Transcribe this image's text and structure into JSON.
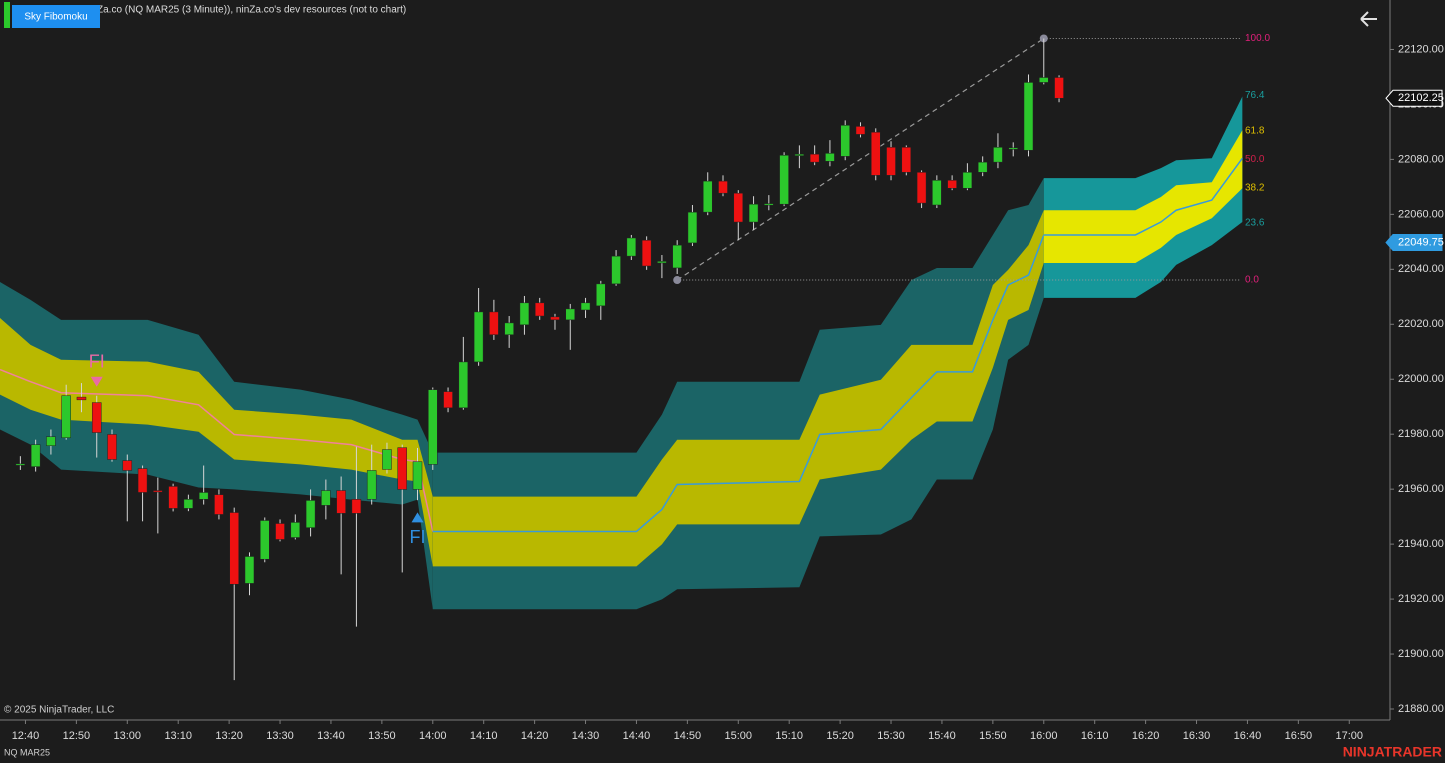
{
  "chart_data": {
    "type": "candlestick",
    "indicator_button": "Sky Fibomoku",
    "chart_label": "Za.co (NQ MAR25 (3 Minute)), ninZa.co's dev resources (not to chart)",
    "copyright": "© 2025 NinjaTrader, LLC",
    "instrument": "NQ MAR25",
    "brand": "NINJATRADER",
    "xlim": [
      "12:35",
      "17:08"
    ],
    "ylim": [
      21876,
      22138
    ],
    "grid": false,
    "xticks": [
      "12:40",
      "12:50",
      "13:00",
      "13:10",
      "13:20",
      "13:30",
      "13:40",
      "13:50",
      "14:00",
      "14:10",
      "14:20",
      "14:30",
      "14:40",
      "14:50",
      "15:00",
      "15:10",
      "15:20",
      "15:30",
      "15:40",
      "15:50",
      "16:00",
      "16:10",
      "16:20",
      "16:30",
      "16:40",
      "16:50",
      "17:00"
    ],
    "yticks": [
      {
        "value": 21880,
        "label": "21880.00"
      },
      {
        "value": 21900,
        "label": "21900.00"
      },
      {
        "value": 21920,
        "label": "21920.00"
      },
      {
        "value": 21940,
        "label": "21940.00"
      },
      {
        "value": 21960,
        "label": "21960.00"
      },
      {
        "value": 21980,
        "label": "21980.00"
      },
      {
        "value": 22000,
        "label": "22000.00"
      },
      {
        "value": 22020,
        "label": "22020.00"
      },
      {
        "value": 22040,
        "label": "22040.00"
      },
      {
        "value": 22060,
        "label": "22060.00"
      },
      {
        "value": 22080,
        "label": "22080.00"
      },
      {
        "value": 22100,
        "label": "22100.00"
      },
      {
        "value": 22120,
        "label": "22120.00"
      }
    ],
    "up_color": "#2cc82c",
    "down_color": "#ee1111",
    "wick_color": "#d6d6d6",
    "x": [
      "12:39",
      "12:42",
      "12:45",
      "12:48",
      "12:51",
      "12:54",
      "12:57",
      "13:00",
      "13:03",
      "13:06",
      "13:09",
      "13:12",
      "13:15",
      "13:18",
      "13:21",
      "13:24",
      "13:27",
      "13:30",
      "13:33",
      "13:36",
      "13:39",
      "13:42",
      "13:45",
      "13:48",
      "13:51",
      "13:54",
      "13:57",
      "14:00",
      "14:03",
      "14:06",
      "14:09",
      "14:12",
      "14:15",
      "14:18",
      "14:21",
      "14:24",
      "14:27",
      "14:30",
      "14:33",
      "14:36",
      "14:39",
      "14:42",
      "14:45",
      "14:48",
      "14:51",
      "14:54",
      "14:57",
      "15:00",
      "15:03",
      "15:06",
      "15:09",
      "15:12",
      "15:15",
      "15:18",
      "15:21",
      "15:24",
      "15:27",
      "15:30",
      "15:33",
      "15:36",
      "15:39",
      "15:42",
      "15:45",
      "15:48",
      "15:51",
      "15:54",
      "15:57",
      "16:00",
      "16:03"
    ],
    "open": [
      21968.8,
      21968.2,
      21975.8,
      21978.7,
      21993.5,
      21991.5,
      21979.9,
      21970.4,
      21967.5,
      21959.5,
      21961,
      21953,
      21956.3,
      21958,
      21951.5,
      21925.7,
      21934.5,
      21947.5,
      21942.4,
      21946,
      21954.1,
      21959.5,
      21956.3,
      21956.3,
      21967.2,
      21975.1,
      21959.9,
      21969,
      21995.5,
      21989.6,
      22006.3,
      22024.5,
      22016.2,
      22019.8,
      22027.8,
      22022.7,
      22021.6,
      22025.2,
      22026.7,
      22034.7,
      22044.8,
      22050.6,
      22042.3,
      22040.5,
      22049.6,
      22060.8,
      22072.1,
      22067.7,
      22057.2,
      22063.5,
      22063.7,
      22081.7,
      22081.9,
      22079.3,
      22081.1,
      22092,
      22089.9,
      22084.4,
      22084.4,
      22075.3,
      22063.4,
      22072.4,
      22069.5,
      22075.3,
      22079,
      22083.9,
      22083.3,
      22108,
      22109.8
    ],
    "high": [
      21972,
      21978,
      21981.7,
      21998,
      21998.6,
      21994,
      21981.7,
      21972.6,
      21968.6,
      21964.2,
      21962,
      21958,
      21968.6,
      21959.9,
      21953.3,
      21937,
      21949.7,
      21949,
      21950.8,
      21959.9,
      21963.5,
      21964.6,
      21975.5,
      21976.2,
      21976.9,
      21976.2,
      21975,
      21997,
      21997,
      22015.4,
      22033.2,
      22028.9,
      22023,
      22030.3,
      22029.6,
      22023.8,
      22027.4,
      22029.6,
      22035.8,
      22047,
      22052.5,
      22052,
      22045.2,
      22050.6,
      22063.4,
      22075.3,
      22074.2,
      22068.8,
      22066.6,
      22067,
      22082.6,
      22085.1,
      22085.1,
      22087,
      22094.2,
      22093.5,
      22091.3,
      22086.6,
      22085.1,
      22076,
      22074.2,
      22074.2,
      22078.6,
      22081.1,
      22089.5,
      22086.2,
      22110.9,
      22124,
      22110.6
    ],
    "low": [
      21967,
      21966.4,
      21972.6,
      21978,
      21988,
      21971.5,
      21970,
      21948.3,
      21948.3,
      21943.9,
      21951.9,
      21952,
      21954.4,
      21949,
      21890.5,
      21921.4,
      21933.4,
      21941,
      21941.7,
      21942.8,
      21949,
      21929,
      21910,
      21954.4,
      21965.7,
      21929.7,
      21956,
      21967,
      21988,
      21988.9,
      22004.9,
      22014.3,
      22011.4,
      22016.2,
      22021.6,
      22018,
      22010.7,
      22022.3,
      22021.6,
      22034,
      22043.4,
      22039.8,
      22036.8,
      22038.3,
      22048.5,
      22059.7,
      22066.6,
      22050.6,
      22054.3,
      22061.5,
      22063,
      22076.8,
      22077.9,
      22077.5,
      22079.7,
      22088,
      22072.4,
      22072.4,
      22074.2,
      22062.3,
      22062.3,
      22068.8,
      22068.8,
      22073.9,
      22076.8,
      22081.1,
      22081.1,
      22107.3,
      22100.8
    ],
    "close": [
      21969.2,
      21976.2,
      21979.1,
      21994,
      21992.5,
      21980.6,
      21970.8,
      21966.8,
      21958.8,
      21959.2,
      21953,
      21956.3,
      21958.8,
      21950.8,
      21925.4,
      21935.5,
      21948.6,
      21941.7,
      21947.9,
      21955.9,
      21959.5,
      21951.2,
      21951.2,
      21966.8,
      21974.4,
      21959.9,
      21970,
      21996.2,
      21989.6,
      22006.3,
      22024.5,
      22016.2,
      22020.5,
      22027.8,
      22023,
      22021.6,
      22025.6,
      22027.8,
      22034.7,
      22044.8,
      22051.4,
      22041.2,
      22042.9,
      22048.8,
      22060.8,
      22072.1,
      22067.7,
      22057.2,
      22063.7,
      22063.9,
      22081.5,
      22081.9,
      22079,
      22082.2,
      22092.4,
      22089.1,
      22074.2,
      22074.2,
      22075.3,
      22064.1,
      22072.4,
      22069.5,
      22075.3,
      22079,
      22084.4,
      22084.2,
      22108,
      22109.8,
      22102.25
    ],
    "bands": [
      {
        "outer_color": "#1b6466",
        "inner_color": "#b9b800",
        "mid_color": "#f0829a",
        "x": [
          "12:35",
          "12:41",
          "12:47",
          "13:04",
          "13:14",
          "13:21",
          "13:34",
          "13:44",
          "13:54",
          "13:57",
          "14:00"
        ],
        "outer_upper": [
          22035.4,
          22028.9,
          22021.6,
          22021.6,
          22016.2,
          21999.1,
          21996.2,
          21992.6,
          21987.1,
          21985.3,
          21973.3
        ],
        "inner_upper": [
          22022.3,
          22012.5,
          22007.1,
          22006.4,
          22002.7,
          21988.9,
          21987.1,
          21985.3,
          21978,
          21978,
          21957.3
        ],
        "mid": [
          22003.5,
          21999.1,
          21995.1,
          21994,
          21990.7,
          21979.9,
          21978,
          21976.2,
          21970.8,
          21970,
          21944.6
        ],
        "inner_lower": [
          21994.4,
          21988.9,
          21985.3,
          21983.5,
          21980.9,
          21970.8,
          21969,
          21967.1,
          21963.5,
          21962.8,
          21931.9
        ],
        "outer_lower": [
          21981.7,
          21976.2,
          21967.1,
          21965.3,
          21960.6,
          21959.9,
          21958.1,
          21956.2,
          21954.4,
          21956.2,
          21916.3
        ]
      },
      {
        "outer_color": "#1b6466",
        "inner_color": "#b9b800",
        "mid_color": "#3a9ad9",
        "x": [
          "14:00",
          "14:40",
          "14:45",
          "14:48",
          "15:12",
          "15:16",
          "15:28",
          "15:34",
          "15:39",
          "15:46",
          "15:50",
          "15:53",
          "15:57",
          "16:00"
        ],
        "outer_upper": [
          21973.3,
          21973.3,
          21987.1,
          21999.1,
          21999.1,
          22018,
          22019.8,
          22036.1,
          22040.5,
          22040.5,
          22052.5,
          22061.5,
          22063.4,
          22073.2
        ],
        "inner_upper": [
          21957.3,
          21957.3,
          21970.8,
          21978,
          21978,
          21994.4,
          21999.8,
          22012.5,
          22012.5,
          22012.5,
          22034.3,
          22039.8,
          22048.8,
          22061.5
        ],
        "mid": [
          21944.6,
          21944.6,
          21952.6,
          21961.7,
          21962.8,
          21979.9,
          21981.7,
          21993.3,
          22002.7,
          22002.7,
          22021.6,
          22034.3,
          22037.9,
          22052.5
        ],
        "inner_lower": [
          21931.9,
          21931.9,
          21939.9,
          21947.2,
          21947.2,
          21963.5,
          21967.1,
          21978,
          21984.6,
          21984.6,
          22004.2,
          22021.6,
          22025.2,
          22042.3
        ],
        "outer_lower": [
          21916.3,
          21916.3,
          21919.9,
          21923.6,
          21924.3,
          21942.8,
          21943.5,
          21949,
          21963.5,
          21963.5,
          21981.7,
          22007.1,
          22012.5,
          22029.6
        ]
      },
      {
        "outer_color": "#16979a",
        "inner_color": "#e6e600",
        "mid_color": "#3a9ad9",
        "x": [
          "16:00",
          "16:18",
          "16:23",
          "16:26",
          "16:33",
          "16:39"
        ],
        "outer_upper": [
          22073.2,
          22073.2,
          22076.8,
          22079.7,
          22080.4,
          22102.9
        ],
        "inner_upper": [
          22061.5,
          22061.5,
          22066.3,
          22070.6,
          22071.7,
          22090.6
        ],
        "mid": [
          22052.5,
          22052.5,
          22057.2,
          22061.5,
          22065.2,
          22080.4
        ],
        "inner_lower": [
          22042.3,
          22042.3,
          22047.8,
          22052.5,
          22058.6,
          22069.5
        ],
        "outer_lower": [
          22029.6,
          22029.6,
          22035.4,
          22041.6,
          22048.8,
          22057.2
        ]
      }
    ],
    "fibonacci": {
      "color": "#9a9a9a",
      "start": {
        "x": "14:48",
        "y": 22036.1
      },
      "end": {
        "x": "16:00",
        "y": 22124
      },
      "levels": [
        {
          "value": 100,
          "label": "100.0",
          "color": "#e0207a",
          "line": true
        },
        {
          "value": 76.4,
          "label": "76.4",
          "color": "#1a9e9e",
          "line": false
        },
        {
          "value": 61.8,
          "label": "61.8",
          "color": "#e0c000",
          "line": false
        },
        {
          "value": 50,
          "label": "50.0",
          "color": "#d0204a",
          "line": false
        },
        {
          "value": 38.2,
          "label": "38.2",
          "color": "#e0c000",
          "line": false
        },
        {
          "value": 23.6,
          "label": "23.6",
          "color": "#1a9e9e",
          "line": false
        },
        {
          "value": 0,
          "label": "0.0",
          "color": "#e0207a",
          "line": true
        }
      ]
    },
    "markers": [
      {
        "label": "FI",
        "x": "12:54",
        "y": 21998.7,
        "color": "#ea6aa6",
        "direction": "down"
      },
      {
        "label": "FI",
        "x": "13:57",
        "y": 21950.1,
        "color": "#2f8fe0",
        "direction": "up"
      }
    ],
    "price_markers": [
      {
        "value": 22102.25,
        "fill": "#111111",
        "stroke": "#ffffff",
        "text_color": "#ffffff"
      },
      {
        "value": 22049.75,
        "fill": "#2f9be0",
        "stroke": "#2f9be0",
        "text_color": "#ffffff"
      }
    ]
  }
}
